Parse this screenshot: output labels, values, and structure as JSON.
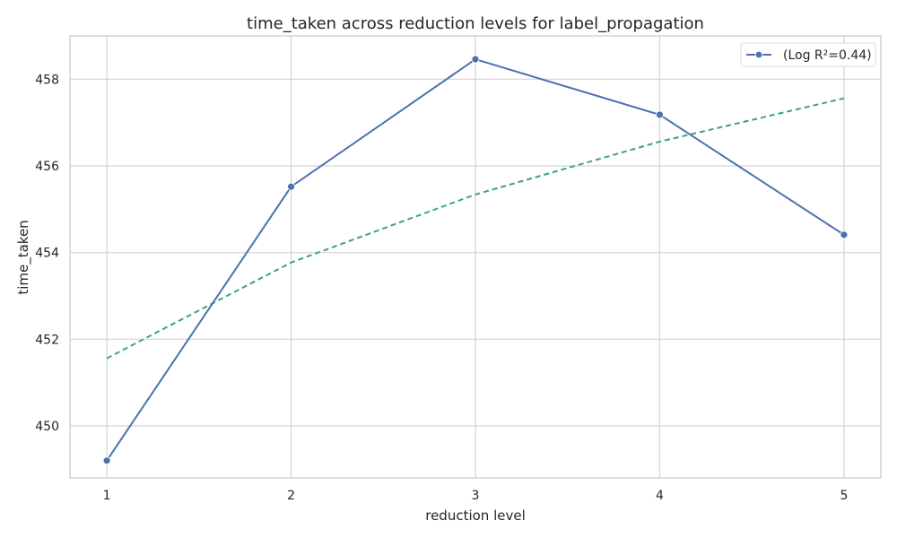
{
  "chart_data": {
    "type": "line",
    "title": "time_taken across reduction levels for label_propagation",
    "xlabel": "reduction level",
    "ylabel": "time_taken",
    "x": [
      1,
      2,
      3,
      4,
      5
    ],
    "xticks": [
      1,
      2,
      3,
      4,
      5
    ],
    "yticks": [
      450,
      452,
      454,
      456,
      458
    ],
    "xlim": [
      0.8,
      5.2
    ],
    "ylim": [
      448.8,
      459.0
    ],
    "grid": true,
    "legend_position": "top-right",
    "series": [
      {
        "name": "(Log R²=0.44)",
        "kind": "line-marker",
        "color": "#4c72b0",
        "values": [
          449.2,
          455.52,
          458.46,
          457.18,
          454.41
        ]
      },
      {
        "kind": "dashed-fit",
        "color": "#3aa57a",
        "values": [
          451.56,
          453.77,
          455.34,
          456.56,
          457.56
        ]
      }
    ]
  }
}
